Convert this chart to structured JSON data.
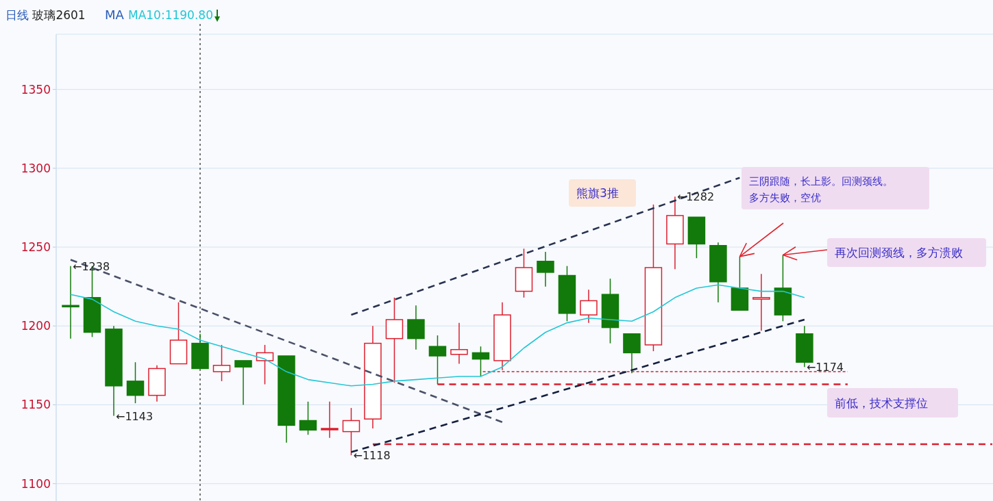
{
  "chart_data": {
    "type": "candlestick",
    "title": "日线 玻璃2601",
    "subtitle": "MA",
    "categories": [
      null,
      null,
      null,
      null,
      null,
      null,
      null,
      null,
      null,
      null,
      null,
      null,
      null,
      null,
      null,
      null,
      null,
      null,
      null,
      null,
      null,
      null,
      null,
      null,
      null,
      null,
      null,
      null,
      null,
      null,
      null,
      null,
      null,
      null,
      null
    ],
    "ohlc": [
      [
        1213,
        1238,
        1192,
        1213
      ],
      [
        1218,
        1238,
        1193,
        1196
      ],
      [
        1198,
        1200,
        1143,
        1162
      ],
      [
        1165,
        1177,
        1151,
        1156
      ],
      [
        1156,
        1175,
        1152,
        1173
      ],
      [
        1176,
        1215,
        1176,
        1191
      ],
      [
        1189,
        1195,
        1173,
        1173
      ],
      [
        1171,
        1188,
        1165,
        1175
      ],
      [
        1178,
        1178,
        1150,
        1174
      ],
      [
        1178,
        1188,
        1163,
        1183
      ],
      [
        1181,
        1181,
        1126,
        1137
      ],
      [
        1140,
        1152,
        1131,
        1134
      ],
      [
        1135,
        1152,
        1129,
        1135
      ],
      [
        1133,
        1148,
        1118,
        1140
      ],
      [
        1141,
        1200,
        1135,
        1189
      ],
      [
        1192,
        1218,
        1164,
        1204
      ],
      [
        1204,
        1213,
        1185,
        1192
      ],
      [
        1187,
        1194,
        1163,
        1181
      ],
      [
        1182,
        1202,
        1176,
        1185
      ],
      [
        1183,
        1187,
        1168,
        1179
      ],
      [
        1178,
        1215,
        1172,
        1207
      ],
      [
        1222,
        1249,
        1218,
        1237
      ],
      [
        1241,
        1247,
        1225,
        1234
      ],
      [
        1232,
        1238,
        1203,
        1208
      ],
      [
        1207,
        1223,
        1202,
        1216
      ],
      [
        1220,
        1230,
        1189,
        1199
      ],
      [
        1195,
        1195,
        1170,
        1183
      ],
      [
        1188,
        1277,
        1184,
        1237
      ],
      [
        1252,
        1282,
        1236,
        1270
      ],
      [
        1269,
        1269,
        1243,
        1252
      ],
      [
        1251,
        1253,
        1215,
        1228
      ],
      [
        1224,
        1244,
        1210,
        1210
      ],
      [
        1217,
        1233,
        1197,
        1218
      ],
      [
        1224,
        1245,
        1203,
        1207
      ],
      [
        1195,
        1200,
        1174,
        1177
      ]
    ],
    "colors": [
      "#127a0a",
      "#127a0a",
      "#127a0a",
      "#127a0a",
      "#dc1e2e",
      "#dc1e2e",
      "#127a0a",
      "#dc1e2e",
      "#127a0a",
      "#dc1e2e",
      "#127a0a",
      "#127a0a",
      "#dc1e2e",
      "#dc1e2e",
      "#dc1e2e",
      "#dc1e2e",
      "#127a0a",
      "#127a0a",
      "#dc1e2e",
      "#127a0a",
      "#dc1e2e",
      "#dc1e2e",
      "#127a0a",
      "#127a0a",
      "#dc1e2e",
      "#127a0a",
      "#127a0a",
      "#dc1e2e",
      "#dc1e2e",
      "#127a0a",
      "#127a0a",
      "#127a0a",
      "#dc1e2e",
      "#127a0a",
      "#127a0a"
    ],
    "series": [
      {
        "name": "MA10:1190.80",
        "type": "line",
        "color": "#22c7d6",
        "values": [
          1220,
          1217,
          1209,
          1203,
          1200,
          1198,
          1191,
          1187,
          1183,
          1179,
          1171,
          1166,
          1164,
          1162,
          1163,
          1165,
          1166,
          1167,
          1168,
          1168,
          1174,
          1186,
          1196,
          1202,
          1205,
          1204,
          1203,
          1209,
          1218,
          1224,
          1226,
          1224,
          1222,
          1222,
          1218
        ]
      },
      {
        "type": "line",
        "color": "#4a5068",
        "line_style": "dashed",
        "values": [
          1242,
          null,
          null,
          null,
          null,
          null,
          null,
          null,
          null,
          null,
          null,
          null,
          null,
          null,
          null,
          null,
          null,
          null,
          null,
          null,
          1139,
          null,
          null,
          null,
          null,
          null,
          null,
          null,
          null,
          null,
          null,
          null,
          null,
          null,
          null
        ]
      },
      {
        "type": "line",
        "color": "#283250",
        "line_style": "dashed",
        "values": [
          null,
          null,
          null,
          null,
          null,
          null,
          null,
          null,
          null,
          null,
          null,
          null,
          null,
          1207,
          null,
          null,
          null,
          null,
          null,
          null,
          null,
          null,
          null,
          null,
          null,
          null,
          null,
          null,
          null,
          null,
          null,
          1294,
          null,
          null,
          null
        ]
      },
      {
        "type": "line",
        "color": "#15203f",
        "line_style": "dashed",
        "values": [
          null,
          null,
          null,
          null,
          null,
          null,
          null,
          null,
          null,
          null,
          null,
          null,
          null,
          1120,
          null,
          null,
          null,
          null,
          null,
          null,
          null,
          null,
          null,
          null,
          null,
          null,
          null,
          null,
          null,
          null,
          null,
          null,
          null,
          null,
          1204
        ]
      }
    ],
    "ref_lines": [
      {
        "axis": "y",
        "value": 1171,
        "color": "#dc1e2e",
        "line_style": "dotted"
      },
      {
        "axis": "y",
        "value": 1163,
        "color": "#dc1e2e",
        "line_style": "dashed"
      },
      {
        "axis": "y",
        "value": 1125,
        "color": "#dc1e2e",
        "line_style": "dashed"
      }
    ],
    "annotations": [
      "←1238",
      "←1143",
      "←1118",
      "←1282",
      "←1174",
      "熊旗3推",
      "三阴跟随，长上影。回测颈线。",
      "多方失败，空优",
      "再次回测颈线，多方溃败",
      "前低，技术支撑位"
    ],
    "ylim": [
      1089,
      1385
    ],
    "yticks": [
      1100,
      1150,
      1200,
      1250,
      1300,
      1350
    ],
    "grid": "y",
    "tick_labels": "y"
  }
}
